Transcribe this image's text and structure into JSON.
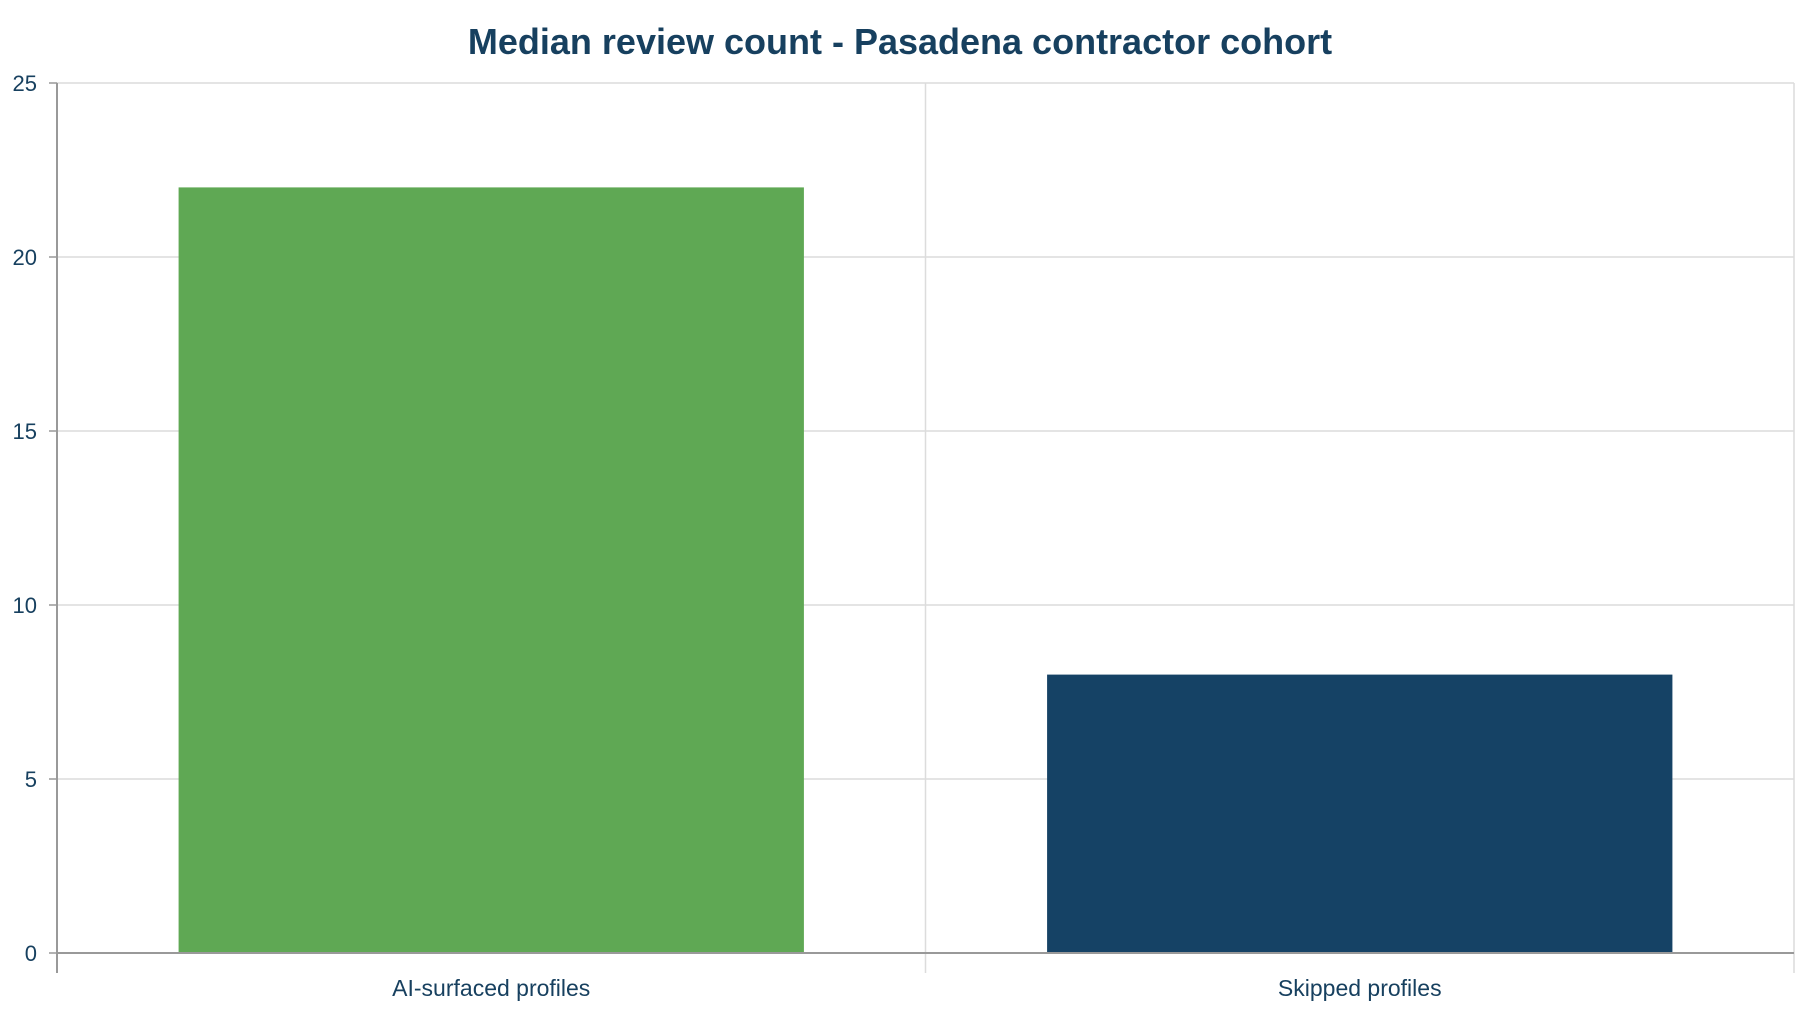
{
  "chart_data": {
    "type": "bar",
    "title": "Median review count - Pasadena contractor cohort",
    "xlabel": "",
    "ylabel": "",
    "categories": [
      "AI-surfaced profiles",
      "Skipped profiles"
    ],
    "values": [
      22,
      8
    ],
    "bar_colors": [
      "#5fa854",
      "#154265"
    ],
    "ylim": [
      0,
      25
    ],
    "yticks": [
      "0",
      "5",
      "10",
      "15",
      "20",
      "25"
    ],
    "grid": true,
    "legend": "none"
  },
  "colors": {
    "text": "#17405f",
    "grid": "#dcdcdc",
    "axis": "#999999"
  }
}
